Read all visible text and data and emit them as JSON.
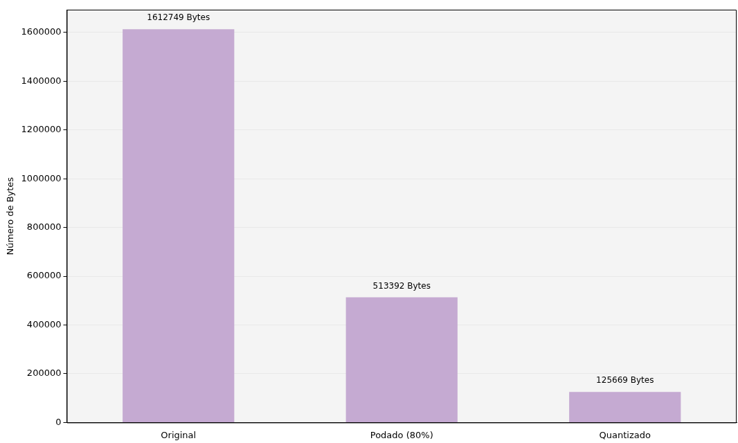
{
  "chart_data": {
    "type": "bar",
    "ylabel": "Número de Bytes",
    "categories": [
      "Original",
      "Podado (80%)",
      "Quantizado"
    ],
    "values": [
      1612749,
      513392,
      125669
    ],
    "value_labels": [
      "1612749 Bytes",
      "513392 Bytes",
      "125669 Bytes"
    ],
    "color": "#c5aad2",
    "ylim": [
      0,
      1693000
    ],
    "yticks": [
      0,
      200000,
      400000,
      600000,
      800000,
      1000000,
      1200000,
      1400000,
      1600000
    ],
    "grid": "y",
    "legend": false
  }
}
